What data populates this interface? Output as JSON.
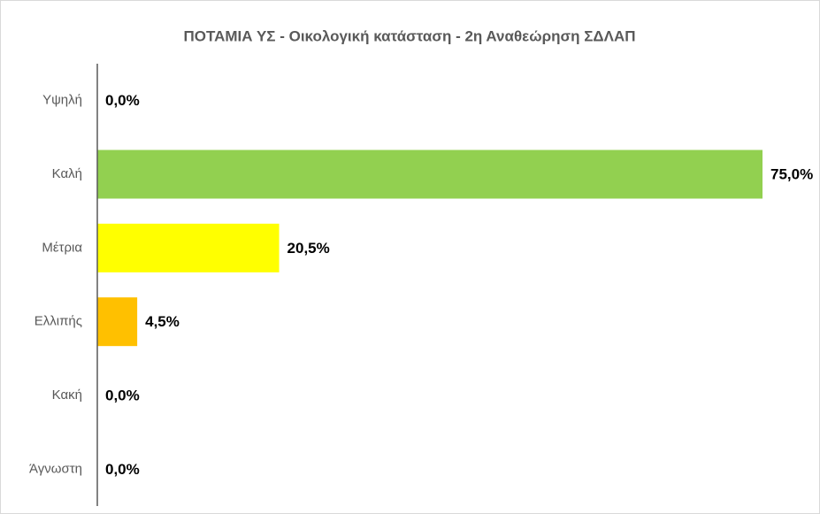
{
  "chart_data": {
    "type": "hbar",
    "title": "ΠΟΤΑΜΙΑ ΥΣ - Οικολογική κατάσταση - 2η Αναθεώρηση ΣΔΛΑΠ",
    "categories": [
      "Υψηλή",
      "Καλή",
      "Μέτρια",
      "Ελλιπής",
      "Κακή",
      "Άγνωστη"
    ],
    "values": [
      0,
      75,
      20.5,
      4.5,
      0,
      0
    ],
    "value_labels": [
      "0,0%",
      "75,0%",
      "20,5%",
      "4,5%",
      "0,0%",
      "0,0%"
    ],
    "colors": [
      "#0070c0",
      "#92d050",
      "#ffff00",
      "#ffc000",
      "#ff0000",
      "#a6a6a6"
    ],
    "xlim": [
      0,
      75
    ]
  }
}
